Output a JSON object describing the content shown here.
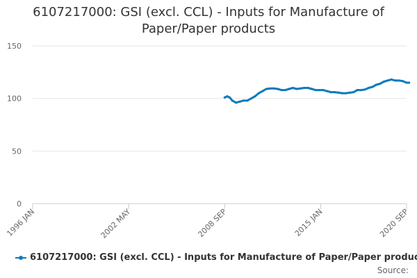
{
  "chart_data": {
    "type": "line",
    "title": [
      "6107217000: GSI (excl. CCL) - Inputs for Manufacture of",
      "Paper/Paper products"
    ],
    "xlabel": "",
    "ylabel": "",
    "x_tick_labels": [
      "1996 JAN",
      "2002 MAY",
      "2008 SEP",
      "2015 JAN",
      "2020 SEP"
    ],
    "y_tick_labels": [
      "0",
      "50",
      "100",
      "150"
    ],
    "ylim": [
      0,
      150
    ],
    "grid": true,
    "legend_position": "bottom",
    "series": [
      {
        "name": "6107217000: GSI (excl. CCL) - Inputs for Manufacture of Paper/Paper products",
        "color": "#0c7bbd",
        "x": [
          "2008-09",
          "2008-11",
          "2009-01",
          "2009-03",
          "2009-06",
          "2009-09",
          "2009-12",
          "2010-03",
          "2010-06",
          "2010-09",
          "2010-12",
          "2011-03",
          "2011-06",
          "2011-09",
          "2011-12",
          "2012-03",
          "2012-06",
          "2012-09",
          "2012-12",
          "2013-03",
          "2013-06",
          "2013-09",
          "2013-12",
          "2014-03",
          "2014-06",
          "2014-09",
          "2014-12",
          "2015-03",
          "2015-06",
          "2015-09",
          "2015-12",
          "2016-03",
          "2016-06",
          "2016-09",
          "2016-12",
          "2017-03",
          "2017-06",
          "2017-09",
          "2017-12",
          "2018-03",
          "2018-06",
          "2018-09",
          "2018-12",
          "2019-03",
          "2019-06",
          "2019-09",
          "2019-12",
          "2020-03",
          "2020-06",
          "2020-09",
          "2020-11"
        ],
        "values": [
          101,
          102,
          101,
          98,
          96,
          97,
          98,
          98,
          100,
          102,
          105,
          107,
          109,
          109.5,
          109.5,
          109,
          108,
          108,
          109,
          110,
          109,
          109.5,
          110,
          110,
          109,
          108,
          108,
          108,
          107,
          106,
          106,
          105.5,
          105,
          105,
          105.5,
          106,
          108,
          108,
          108.5,
          110,
          111,
          113,
          114,
          116,
          117,
          118,
          117,
          117,
          116.5,
          115,
          115
        ]
      }
    ]
  },
  "source_label": "Source:"
}
